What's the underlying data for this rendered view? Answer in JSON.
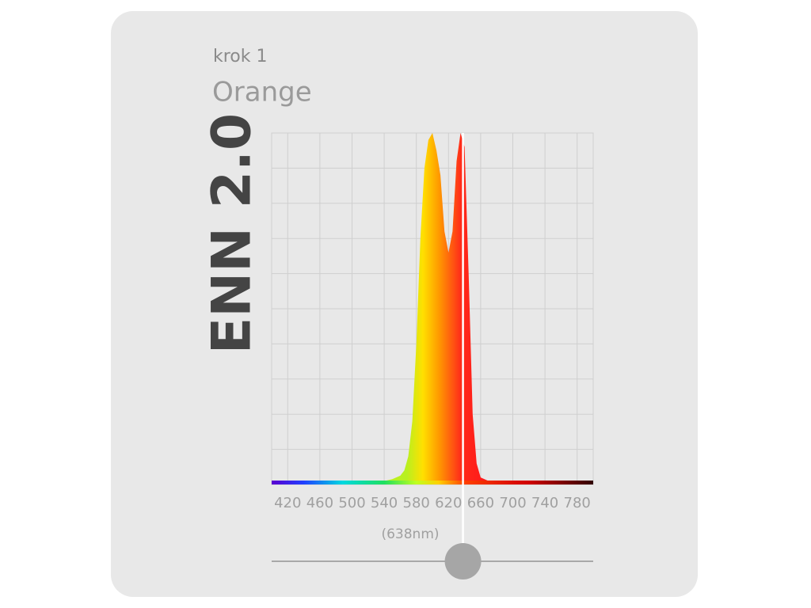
{
  "step_label": "krok 1",
  "color_name": "Orange",
  "product": "ENN 2.0",
  "chart_data": {
    "type": "area",
    "x": [
      400,
      420,
      440,
      460,
      480,
      500,
      520,
      540,
      550,
      560,
      565,
      570,
      575,
      580,
      585,
      590,
      595,
      600,
      605,
      610,
      615,
      620,
      625,
      630,
      635,
      640,
      645,
      650,
      655,
      660,
      670,
      680,
      700,
      740,
      800
    ],
    "values": [
      0.5,
      0.5,
      0.5,
      0.5,
      0.5,
      0.6,
      0.8,
      1,
      1.5,
      2.5,
      4,
      8,
      18,
      40,
      70,
      90,
      98,
      100,
      95,
      88,
      72,
      66,
      72,
      92,
      100,
      96,
      60,
      20,
      6,
      2,
      1,
      0.6,
      0.4,
      0.3,
      0.3
    ],
    "xlim": [
      400,
      800
    ],
    "xticks": [
      420,
      460,
      500,
      540,
      580,
      620,
      660,
      700,
      740,
      780
    ],
    "ylim": [
      0,
      100
    ],
    "yticks": [
      0,
      10,
      20,
      30,
      40,
      50,
      60,
      70,
      80,
      90,
      100
    ],
    "grid": true,
    "marker": {
      "value": 638,
      "label": "(638nm)"
    }
  }
}
